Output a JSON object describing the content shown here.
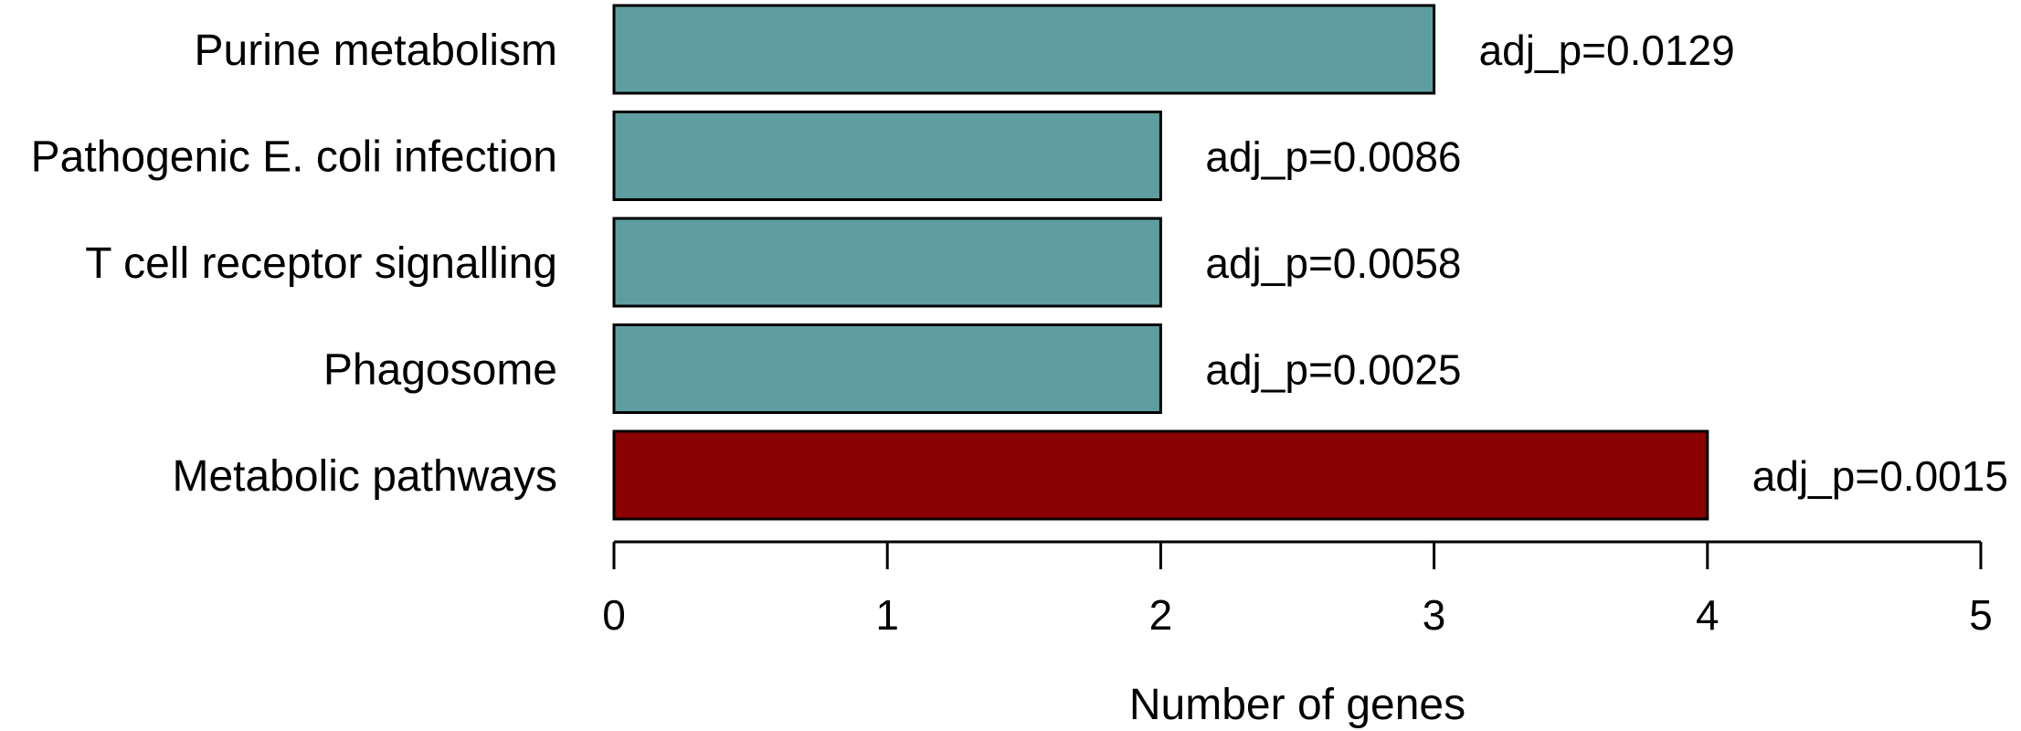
{
  "chart_data": {
    "type": "bar",
    "orientation": "horizontal",
    "title": "",
    "xlabel": "Number of genes",
    "ylabel": "",
    "xlim": [
      0,
      5
    ],
    "xticks": [
      0,
      1,
      2,
      3,
      4,
      5
    ],
    "grid": false,
    "legend": "none",
    "categories": [
      "Purine metabolism",
      "Pathogenic E. coli infection",
      "T cell receptor signalling",
      "Phagosome",
      "Metabolic pathways"
    ],
    "values": [
      3,
      2,
      2,
      2,
      4
    ],
    "annotations": [
      "adj_p=0.0129",
      "adj_p=0.0086",
      "adj_p=0.0058",
      "adj_p=0.0025",
      "adj_p=0.0015"
    ],
    "colors": [
      "#5f9ea0",
      "#5f9ea0",
      "#5f9ea0",
      "#5f9ea0",
      "#8b0000"
    ]
  }
}
